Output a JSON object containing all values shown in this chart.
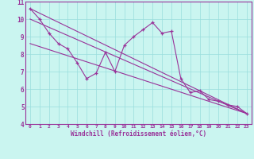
{
  "xlabel": "Windchill (Refroidissement éolien,°C)",
  "background_color": "#caf5f0",
  "line_color": "#993399",
  "grid_color": "#99dddd",
  "xlim": [
    -0.5,
    23.5
  ],
  "ylim": [
    4,
    11
  ],
  "yticks": [
    4,
    5,
    6,
    7,
    8,
    9,
    10,
    11
  ],
  "xticks": [
    0,
    1,
    2,
    3,
    4,
    5,
    6,
    7,
    8,
    9,
    10,
    11,
    12,
    13,
    14,
    15,
    16,
    17,
    18,
    19,
    20,
    21,
    22,
    23
  ],
  "series1_x": [
    0,
    1,
    2,
    3,
    4,
    5,
    6,
    7,
    8,
    9,
    10,
    11,
    12,
    13,
    14,
    15,
    16,
    17,
    18,
    19,
    20,
    21,
    22,
    23
  ],
  "series1_y": [
    10.6,
    10.0,
    9.2,
    8.6,
    8.3,
    7.5,
    6.6,
    6.9,
    8.1,
    7.0,
    8.5,
    9.0,
    9.4,
    9.8,
    9.2,
    9.3,
    6.6,
    5.8,
    5.9,
    5.4,
    5.3,
    5.1,
    5.0,
    4.6
  ],
  "series2_x": [
    0,
    23
  ],
  "series2_y": [
    10.6,
    4.6
  ],
  "series3_x": [
    0,
    23
  ],
  "series3_y": [
    10.0,
    4.6
  ],
  "series4_x": [
    0,
    23
  ],
  "series4_y": [
    8.6,
    4.6
  ]
}
